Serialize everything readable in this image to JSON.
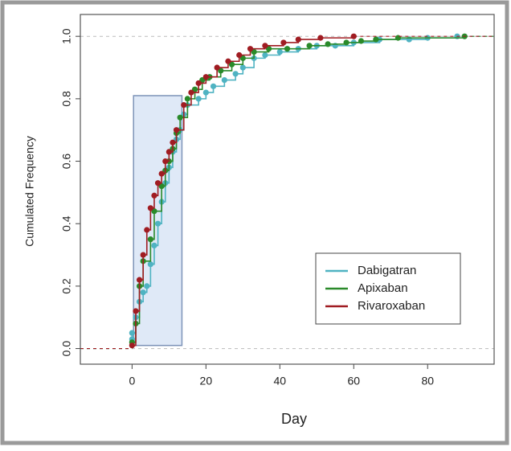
{
  "chart_data": {
    "type": "ecdf",
    "y_label": "Cumulated Frequency",
    "x_label": "Day",
    "xlim": [
      -14,
      98
    ],
    "ylim": [
      -0.05,
      1.07
    ],
    "xticks": [
      0,
      20,
      40,
      60,
      80
    ],
    "yticks": [
      {
        "value": 0,
        "label": "0.0"
      },
      0.2,
      0.4,
      0.6,
      0.8,
      {
        "value": 1,
        "label": "1.0"
      }
    ],
    "hlines": [
      0,
      1
    ],
    "highlight": {
      "x": [
        0.4,
        13.5
      ],
      "y": [
        0.01,
        0.81
      ],
      "color": "#dfe9f7"
    },
    "legend": "bottom-right",
    "series": [
      {
        "name": "Dabigatran",
        "color": "#4fb3c2",
        "x": [
          0,
          0,
          1,
          2,
          3,
          4,
          5,
          6,
          7,
          8,
          9,
          10,
          11,
          12,
          13,
          14,
          15,
          18,
          20,
          22,
          25,
          28,
          30,
          33,
          36,
          40,
          45,
          50,
          55,
          60,
          67,
          75,
          80,
          88
        ],
        "values": [
          0.03,
          0.05,
          0.1,
          0.15,
          0.18,
          0.2,
          0.27,
          0.33,
          0.4,
          0.47,
          0.53,
          0.58,
          0.63,
          0.67,
          0.7,
          0.75,
          0.78,
          0.8,
          0.82,
          0.84,
          0.86,
          0.88,
          0.9,
          0.93,
          0.94,
          0.95,
          0.96,
          0.97,
          0.97,
          0.98,
          0.99,
          0.99,
          0.995,
          1.0
        ]
      },
      {
        "name": "Apixaban",
        "color": "#2a8a2a",
        "x": [
          0,
          1,
          2,
          3,
          5,
          6,
          8,
          9,
          10,
          11,
          12,
          13,
          15,
          17,
          19,
          21,
          24,
          27,
          30,
          33,
          37,
          42,
          48,
          53,
          58,
          62,
          66,
          72,
          90
        ],
        "values": [
          0.02,
          0.08,
          0.2,
          0.28,
          0.35,
          0.44,
          0.52,
          0.57,
          0.6,
          0.64,
          0.69,
          0.74,
          0.8,
          0.83,
          0.86,
          0.87,
          0.89,
          0.91,
          0.93,
          0.95,
          0.96,
          0.96,
          0.97,
          0.975,
          0.98,
          0.985,
          0.99,
          0.995,
          1.0
        ]
      },
      {
        "name": "Rivaroxaban",
        "color": "#a01c22",
        "x": [
          0,
          1,
          2,
          3,
          4,
          5,
          6,
          7,
          8,
          9,
          10,
          11,
          12,
          14,
          16,
          18,
          20,
          23,
          26,
          29,
          32,
          36,
          41,
          45,
          51,
          60
        ],
        "values": [
          0.01,
          0.12,
          0.22,
          0.3,
          0.38,
          0.45,
          0.49,
          0.53,
          0.56,
          0.6,
          0.63,
          0.66,
          0.7,
          0.78,
          0.82,
          0.85,
          0.87,
          0.9,
          0.92,
          0.94,
          0.96,
          0.97,
          0.98,
          0.99,
          0.995,
          1.0
        ]
      }
    ]
  }
}
